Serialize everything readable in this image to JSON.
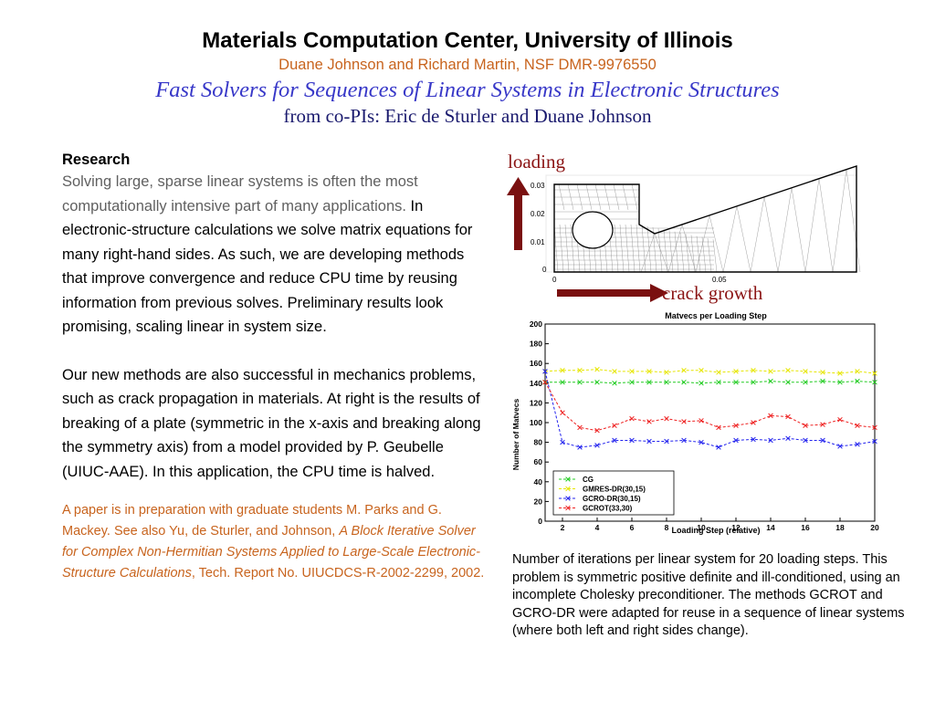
{
  "header": {
    "title": "Materials Computation Center, University of Illinois",
    "subtitle": "Duane Johnson and Richard Martin, NSF DMR-9976550",
    "talk_title": "Fast Solvers for Sequences of Linear Systems in Electronic Structures",
    "copis": "from co-PIs: Eric de Sturler and Duane Johnson"
  },
  "research": {
    "heading": "Research",
    "intro_gray": "Solving large, sparse linear systems is often the most computationally intensive part of many applications.",
    "intro_black": " In electronic-structure calculations we solve matrix equations for many right-hand sides. As such, we are developing methods that improve convergence and reduce CPU time by reusing information from previous solves. Preliminary results look promising, scaling linear in system size.",
    "paragraph2": "Our new methods are also successful in mechanics problems, such as crack propagation in materials. At right is the results of  breaking of a plate (symmetric in the x-axis and breaking along the symmetry axis) from a model provided by P. Geubelle (UIUC-AAE). In this application, the CPU time is halved.",
    "ref_prefix": "A paper is in preparation with graduate students M. Parks and G. Mackey. See also Yu, de Sturler, and Johnson, ",
    "ref_italic": "A Block Iterative Solver for Complex Non-Hermitian Systems Applied to Large-Scale Electronic-Structure Calculations",
    "ref_suffix": ", Tech. Report No. UIUCDCS-R-2002-2299, 2002."
  },
  "mesh_figure": {
    "loading_label": "loading",
    "crack_label": "crack growth",
    "y_ticks": [
      "0.03",
      "0.02",
      "0.01",
      "0"
    ],
    "x_ticks": [
      "0",
      "0.05"
    ],
    "arrow_color": "#7a1010"
  },
  "caption": "Number of iterations per linear system for 20 loading steps. This problem is symmetric positive definite and ill-conditioned, using an incomplete Cholesky preconditioner. The methods GCROT and GCRO-DR were adapted for reuse in a sequence of linear systems (where both left and right sides change).",
  "chart_data": {
    "type": "line",
    "title": "Matvecs per Loading Step",
    "xlabel": "Loading Step (relative)",
    "ylabel": "Number of Matvecs",
    "xlim": [
      1,
      20
    ],
    "ylim": [
      0,
      200
    ],
    "xticks": [
      2,
      4,
      6,
      8,
      10,
      12,
      14,
      16,
      18,
      20
    ],
    "yticks": [
      0,
      20,
      40,
      60,
      80,
      100,
      120,
      140,
      160,
      180,
      200
    ],
    "x": [
      1,
      2,
      3,
      4,
      5,
      6,
      7,
      8,
      9,
      10,
      11,
      12,
      13,
      14,
      15,
      16,
      17,
      18,
      19,
      20
    ],
    "legend_position": "bottom-left",
    "series": [
      {
        "name": "CG",
        "color": "#22cc22",
        "values": [
          141,
          141,
          141,
          141,
          140,
          141,
          141,
          141,
          141,
          140,
          141,
          141,
          141,
          142,
          141,
          141,
          142,
          141,
          142,
          141
        ]
      },
      {
        "name": "GMRES-DR(30,15)",
        "color": "#e6e600",
        "values": [
          152,
          153,
          153,
          154,
          152,
          152,
          152,
          151,
          153,
          153,
          151,
          152,
          153,
          152,
          153,
          152,
          151,
          150,
          152,
          150
        ]
      },
      {
        "name": "GCRO-DR(30,15)",
        "color": "#2222ee",
        "values": [
          152,
          80,
          75,
          77,
          82,
          82,
          81,
          81,
          82,
          80,
          75,
          82,
          83,
          82,
          84,
          82,
          82,
          76,
          78,
          81
        ]
      },
      {
        "name": "GCROT(33,30)",
        "color": "#ee2222",
        "values": [
          141,
          110,
          95,
          92,
          97,
          104,
          101,
          104,
          101,
          102,
          95,
          97,
          100,
          107,
          106,
          97,
          98,
          103,
          97,
          95
        ]
      }
    ]
  }
}
